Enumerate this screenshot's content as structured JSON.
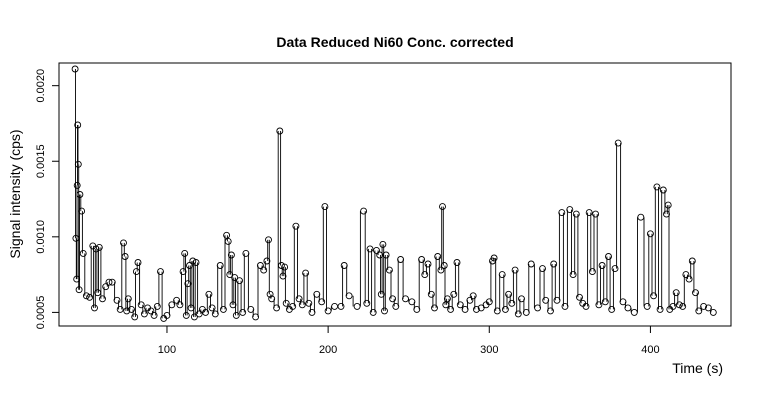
{
  "chart_data": {
    "type": "scatter",
    "title": "Data Reduced Ni60 Conc. corrected",
    "xlabel": "Time (s)",
    "ylabel": "Signal intensity (cps)",
    "xlim": [
      33,
      450
    ],
    "ylim": [
      0.00041,
      0.00215
    ],
    "xticks": [
      100,
      200,
      300,
      400
    ],
    "yticks": [
      0.0005,
      0.001,
      0.0015,
      0.002
    ],
    "ytick_labels": [
      "0.0005",
      "0.0010",
      "0.0015",
      "0.0020"
    ],
    "grid": false,
    "legend": "none",
    "marker": "open-circle",
    "connected_by_vertical_segments": true,
    "series": [
      {
        "x": [
          43,
          43.5,
          44,
          44.3,
          44.6,
          45,
          45.5,
          46,
          47,
          48,
          50,
          52,
          54,
          55,
          56,
          57,
          58,
          60,
          62,
          64,
          66,
          69,
          71,
          73,
          74,
          75,
          76,
          78,
          80,
          81,
          82,
          84,
          86,
          88,
          90,
          92,
          94,
          96,
          98,
          100,
          103,
          106,
          108,
          110,
          111,
          112,
          113,
          114,
          115,
          116,
          117,
          118,
          120,
          122,
          124,
          126,
          128,
          130,
          133,
          135,
          137,
          138,
          139,
          140,
          141,
          142,
          143,
          145,
          147,
          149,
          152,
          155,
          158,
          160,
          162,
          163,
          164,
          165,
          168,
          170,
          171,
          172,
          173,
          174,
          176,
          178,
          180,
          182,
          184,
          186,
          188,
          190,
          193,
          196,
          198,
          200,
          204,
          208,
          210,
          213,
          218,
          222,
          224,
          226,
          228,
          230,
          232,
          233,
          234,
          235,
          236,
          238,
          240,
          242,
          245,
          248,
          252,
          255,
          258,
          260,
          262,
          264,
          266,
          268,
          270,
          271,
          272,
          273,
          274,
          276,
          278,
          280,
          282,
          285,
          288,
          290,
          292,
          295,
          298,
          300,
          302,
          303,
          305,
          308,
          310,
          312,
          314,
          316,
          318,
          320,
          323,
          326,
          330,
          333,
          335,
          338,
          340,
          342,
          345,
          347,
          350,
          352,
          354,
          356,
          358,
          360,
          362,
          364,
          366,
          368,
          370,
          372,
          374,
          376,
          378,
          380,
          383,
          386,
          390,
          394,
          398,
          400,
          402,
          404,
          406,
          408,
          410,
          411,
          412,
          414,
          416,
          418,
          420,
          422,
          424,
          426,
          428,
          430,
          433,
          436,
          439
        ],
        "y": [
          0.00211,
          0.00099,
          0.00072,
          0.00134,
          0.00174,
          0.00148,
          0.00065,
          0.00128,
          0.00117,
          0.00089,
          0.00061,
          0.0006,
          0.00094,
          0.00053,
          0.00092,
          0.00063,
          0.00093,
          0.00059,
          0.00067,
          0.0007,
          0.0007,
          0.00058,
          0.00052,
          0.00096,
          0.00087,
          0.00051,
          0.00059,
          0.00052,
          0.00047,
          0.00077,
          0.00083,
          0.00055,
          0.00049,
          0.00053,
          0.00051,
          0.00048,
          0.00054,
          0.00077,
          0.00046,
          0.00048,
          0.00055,
          0.00058,
          0.00055,
          0.00077,
          0.00089,
          0.00048,
          0.00069,
          0.00081,
          0.00053,
          0.00084,
          0.00047,
          0.00083,
          0.00049,
          0.00052,
          0.0005,
          0.00062,
          0.00053,
          0.00049,
          0.00081,
          0.00052,
          0.00101,
          0.00097,
          0.00075,
          0.00088,
          0.00055,
          0.00073,
          0.00048,
          0.00071,
          0.0005,
          0.00089,
          0.00052,
          0.00047,
          0.00081,
          0.00078,
          0.00084,
          0.00098,
          0.00062,
          0.00059,
          0.00053,
          0.0017,
          0.00081,
          0.00074,
          0.0008,
          0.00056,
          0.00052,
          0.00054,
          0.00107,
          0.00059,
          0.00055,
          0.00076,
          0.00056,
          0.0005,
          0.00062,
          0.00057,
          0.0012,
          0.00051,
          0.00054,
          0.00054,
          0.00081,
          0.00061,
          0.00054,
          0.00117,
          0.00056,
          0.00092,
          0.0005,
          0.00091,
          0.00088,
          0.00062,
          0.00095,
          0.00051,
          0.00088,
          0.00078,
          0.00059,
          0.00054,
          0.00085,
          0.00059,
          0.00057,
          0.00052,
          0.00085,
          0.00075,
          0.00082,
          0.00062,
          0.00053,
          0.00087,
          0.00078,
          0.0012,
          0.00081,
          0.00055,
          0.00059,
          0.00052,
          0.00062,
          0.00083,
          0.00055,
          0.00052,
          0.00058,
          0.00061,
          0.00052,
          0.00053,
          0.00055,
          0.00057,
          0.00084,
          0.00086,
          0.00051,
          0.00075,
          0.00052,
          0.00062,
          0.00056,
          0.00078,
          0.00049,
          0.00059,
          0.0005,
          0.00082,
          0.00053,
          0.00079,
          0.00058,
          0.00051,
          0.00082,
          0.00058,
          0.00116,
          0.00054,
          0.00118,
          0.00075,
          0.00115,
          0.0006,
          0.00056,
          0.00054,
          0.00116,
          0.00077,
          0.00115,
          0.00055,
          0.00081,
          0.00057,
          0.00087,
          0.00052,
          0.00079,
          0.00162,
          0.00057,
          0.00053,
          0.0005,
          0.00113,
          0.00054,
          0.00102,
          0.00061,
          0.00133,
          0.00052,
          0.00131,
          0.00115,
          0.00121,
          0.00052,
          0.00054,
          0.00063,
          0.00055,
          0.00054,
          0.00075,
          0.00072,
          0.00084,
          0.00063,
          0.00051,
          0.00054,
          0.00053,
          0.0005
        ]
      }
    ]
  }
}
